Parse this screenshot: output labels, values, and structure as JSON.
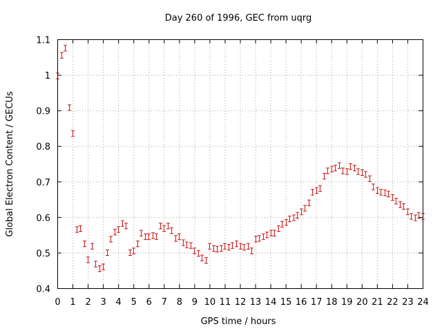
{
  "chart_data": {
    "type": "scatter",
    "title": "Day 260 of 1996, GEC from uqrg",
    "xlabel": "GPS time / hours",
    "ylabel": "Global Electron Content / GECUs",
    "xlim": [
      0,
      24
    ],
    "ylim": [
      0.4,
      1.1
    ],
    "xticks": [
      "0",
      "1",
      "2",
      "3",
      "4",
      "5",
      "6",
      "7",
      "8",
      "9",
      "10",
      "11",
      "12",
      "13",
      "14",
      "15",
      "16",
      "17",
      "18",
      "19",
      "20",
      "21",
      "22",
      "23",
      "24"
    ],
    "yticks": [
      "0.4",
      "0.5",
      "0.6",
      "0.7",
      "0.8",
      "0.9",
      "1",
      "1.1"
    ],
    "grid": true,
    "series_color": "#c81414",
    "error_bar": 0.008,
    "x": [
      0.0,
      0.25,
      0.5,
      0.75,
      1.0,
      1.25,
      1.5,
      1.75,
      2.0,
      2.25,
      2.5,
      2.75,
      3.0,
      3.25,
      3.5,
      3.75,
      4.0,
      4.25,
      4.5,
      4.75,
      5.0,
      5.25,
      5.5,
      5.75,
      6.0,
      6.25,
      6.5,
      6.75,
      7.0,
      7.25,
      7.5,
      7.75,
      8.0,
      8.25,
      8.5,
      8.75,
      9.0,
      9.25,
      9.5,
      9.75,
      10.0,
      10.25,
      10.5,
      10.75,
      11.0,
      11.25,
      11.5,
      11.75,
      12.0,
      12.25,
      12.5,
      12.75,
      13.0,
      13.25,
      13.5,
      13.75,
      14.0,
      14.25,
      14.5,
      14.75,
      15.0,
      15.25,
      15.5,
      15.75,
      16.0,
      16.25,
      16.5,
      16.75,
      17.0,
      17.25,
      17.5,
      17.75,
      18.0,
      18.25,
      18.5,
      18.75,
      19.0,
      19.25,
      19.5,
      19.75,
      20.0,
      20.25,
      20.5,
      20.75,
      21.0,
      21.25,
      21.5,
      21.75,
      22.0,
      22.25,
      22.5,
      22.75,
      23.0,
      23.25,
      23.5,
      23.75,
      24.0
    ],
    "y": [
      0.997,
      1.055,
      1.075,
      0.908,
      0.835,
      0.565,
      0.568,
      0.525,
      0.48,
      0.518,
      0.468,
      0.455,
      0.46,
      0.5,
      0.538,
      0.558,
      0.565,
      0.582,
      0.575,
      0.5,
      0.505,
      0.525,
      0.555,
      0.545,
      0.545,
      0.548,
      0.545,
      0.575,
      0.568,
      0.575,
      0.562,
      0.54,
      0.545,
      0.528,
      0.522,
      0.52,
      0.505,
      0.498,
      0.485,
      0.478,
      0.518,
      0.512,
      0.51,
      0.512,
      0.518,
      0.515,
      0.52,
      0.525,
      0.518,
      0.515,
      0.518,
      0.505,
      0.538,
      0.54,
      0.545,
      0.55,
      0.555,
      0.555,
      0.568,
      0.58,
      0.585,
      0.595,
      0.598,
      0.605,
      0.615,
      0.625,
      0.64,
      0.67,
      0.675,
      0.68,
      0.715,
      0.73,
      0.735,
      0.738,
      0.745,
      0.73,
      0.728,
      0.742,
      0.738,
      0.728,
      0.725,
      0.72,
      0.708,
      0.685,
      0.675,
      0.67,
      0.668,
      0.665,
      0.655,
      0.645,
      0.635,
      0.63,
      0.615,
      0.602,
      0.598,
      0.605,
      0.602
    ]
  }
}
